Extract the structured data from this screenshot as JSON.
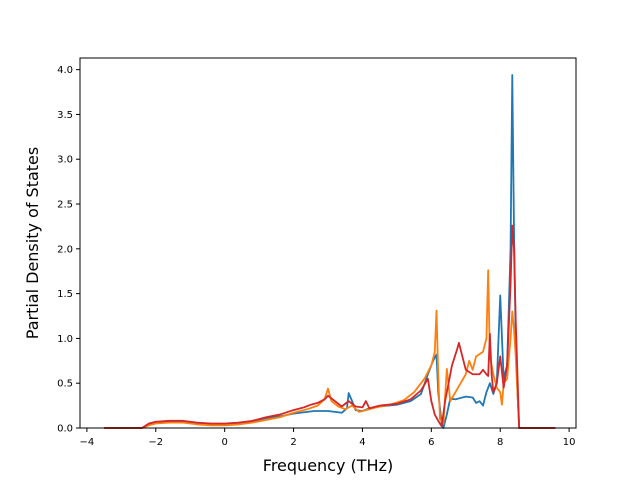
{
  "chart_data": {
    "type": "line",
    "title": "",
    "xlabel": "Frequency (THz)",
    "ylabel": "Partial Density of States",
    "xlim": [
      -4.2,
      10.2
    ],
    "ylim": [
      0,
      4.13
    ],
    "xticks": [
      -4,
      -2,
      0,
      2,
      4,
      6,
      8,
      10
    ],
    "yticks": [
      0.0,
      0.5,
      1.0,
      1.5,
      2.0,
      2.5,
      3.0,
      3.5,
      4.0
    ],
    "xtick_labels": [
      "−4",
      "−2",
      "0",
      "2",
      "4",
      "6",
      "8",
      "10"
    ],
    "ytick_labels": [
      "0.0",
      "0.5",
      "1.0",
      "1.5",
      "2.0",
      "2.5",
      "3.0",
      "3.5",
      "4.0"
    ],
    "grid": false,
    "legend": "none",
    "series": [
      {
        "color": "#1f77b4",
        "points": [
          [
            -3.5,
            0
          ],
          [
            -2.4,
            0
          ],
          [
            -2.2,
            0.04
          ],
          [
            -2.0,
            0.06
          ],
          [
            -1.6,
            0.07
          ],
          [
            -1.2,
            0.07
          ],
          [
            -0.8,
            0.05
          ],
          [
            -0.4,
            0.04
          ],
          [
            0,
            0.04
          ],
          [
            0.4,
            0.05
          ],
          [
            0.8,
            0.07
          ],
          [
            1.2,
            0.11
          ],
          [
            1.6,
            0.13
          ],
          [
            2.0,
            0.16
          ],
          [
            2.4,
            0.18
          ],
          [
            2.6,
            0.19
          ],
          [
            2.8,
            0.19
          ],
          [
            3.0,
            0.19
          ],
          [
            3.2,
            0.18
          ],
          [
            3.4,
            0.17
          ],
          [
            3.55,
            0.22
          ],
          [
            3.6,
            0.39
          ],
          [
            3.7,
            0.3
          ],
          [
            3.8,
            0.2
          ],
          [
            4.0,
            0.19
          ],
          [
            4.2,
            0.22
          ],
          [
            4.5,
            0.24
          ],
          [
            5.0,
            0.26
          ],
          [
            5.4,
            0.3
          ],
          [
            5.7,
            0.38
          ],
          [
            5.9,
            0.6
          ],
          [
            6.05,
            0.75
          ],
          [
            6.15,
            0.82
          ],
          [
            6.2,
            0.4
          ],
          [
            6.3,
            0.05
          ],
          [
            6.35,
            0
          ],
          [
            6.45,
            0.15
          ],
          [
            6.55,
            0.33
          ],
          [
            6.7,
            0.32
          ],
          [
            6.8,
            0.33
          ],
          [
            7.0,
            0.35
          ],
          [
            7.2,
            0.34
          ],
          [
            7.3,
            0.28
          ],
          [
            7.4,
            0.3
          ],
          [
            7.5,
            0.25
          ],
          [
            7.6,
            0.4
          ],
          [
            7.7,
            0.5
          ],
          [
            7.8,
            0.38
          ],
          [
            7.9,
            0.5
          ],
          [
            8.0,
            1.48
          ],
          [
            8.1,
            0.55
          ],
          [
            8.2,
            0.7
          ],
          [
            8.3,
            2.0
          ],
          [
            8.35,
            3.94
          ],
          [
            8.4,
            2.2
          ],
          [
            8.45,
            1.0
          ],
          [
            8.5,
            0.4
          ],
          [
            8.55,
            0
          ],
          [
            9.6,
            0
          ]
        ]
      },
      {
        "color": "#ff7f0e",
        "points": [
          [
            -3.5,
            0
          ],
          [
            -2.4,
            0
          ],
          [
            -2.2,
            0.03
          ],
          [
            -2.0,
            0.05
          ],
          [
            -1.6,
            0.06
          ],
          [
            -1.2,
            0.06
          ],
          [
            -0.8,
            0.04
          ],
          [
            -0.4,
            0.03
          ],
          [
            0,
            0.03
          ],
          [
            0.4,
            0.04
          ],
          [
            0.8,
            0.06
          ],
          [
            1.2,
            0.09
          ],
          [
            1.6,
            0.12
          ],
          [
            2.0,
            0.17
          ],
          [
            2.4,
            0.21
          ],
          [
            2.7,
            0.25
          ],
          [
            2.9,
            0.32
          ],
          [
            3.0,
            0.44
          ],
          [
            3.1,
            0.3
          ],
          [
            3.3,
            0.24
          ],
          [
            3.5,
            0.21
          ],
          [
            3.7,
            0.25
          ],
          [
            3.9,
            0.18
          ],
          [
            4.1,
            0.2
          ],
          [
            4.4,
            0.23
          ],
          [
            4.8,
            0.26
          ],
          [
            5.2,
            0.31
          ],
          [
            5.5,
            0.4
          ],
          [
            5.8,
            0.55
          ],
          [
            6.0,
            0.7
          ],
          [
            6.1,
            0.85
          ],
          [
            6.15,
            1.31
          ],
          [
            6.2,
            0.6
          ],
          [
            6.25,
            0.1
          ],
          [
            6.35,
            0.05
          ],
          [
            6.45,
            0.66
          ],
          [
            6.55,
            0.3
          ],
          [
            6.7,
            0.4
          ],
          [
            6.85,
            0.5
          ],
          [
            7.0,
            0.6
          ],
          [
            7.1,
            0.75
          ],
          [
            7.2,
            0.65
          ],
          [
            7.3,
            0.8
          ],
          [
            7.5,
            0.85
          ],
          [
            7.6,
            1.0
          ],
          [
            7.65,
            1.76
          ],
          [
            7.7,
            0.8
          ],
          [
            7.8,
            0.6
          ],
          [
            7.9,
            0.45
          ],
          [
            8.0,
            0.4
          ],
          [
            8.05,
            0.26
          ],
          [
            8.1,
            0.5
          ],
          [
            8.2,
            0.55
          ],
          [
            8.3,
            1.0
          ],
          [
            8.35,
            1.3
          ],
          [
            8.4,
            1.1
          ],
          [
            8.45,
            0.8
          ],
          [
            8.5,
            0.4
          ],
          [
            8.55,
            0
          ],
          [
            9.6,
            0
          ]
        ]
      },
      {
        "color": "#d62728",
        "points": [
          [
            -3.5,
            0
          ],
          [
            -2.4,
            0
          ],
          [
            -2.2,
            0.05
          ],
          [
            -2.0,
            0.07
          ],
          [
            -1.6,
            0.08
          ],
          [
            -1.2,
            0.08
          ],
          [
            -0.8,
            0.06
          ],
          [
            -0.4,
            0.05
          ],
          [
            0,
            0.05
          ],
          [
            0.4,
            0.06
          ],
          [
            0.8,
            0.08
          ],
          [
            1.2,
            0.12
          ],
          [
            1.6,
            0.15
          ],
          [
            2.0,
            0.2
          ],
          [
            2.3,
            0.23
          ],
          [
            2.5,
            0.26
          ],
          [
            2.7,
            0.28
          ],
          [
            2.9,
            0.32
          ],
          [
            3.0,
            0.36
          ],
          [
            3.2,
            0.3
          ],
          [
            3.4,
            0.24
          ],
          [
            3.6,
            0.3
          ],
          [
            3.8,
            0.24
          ],
          [
            4.0,
            0.23
          ],
          [
            4.1,
            0.3
          ],
          [
            4.2,
            0.22
          ],
          [
            4.5,
            0.25
          ],
          [
            5.0,
            0.27
          ],
          [
            5.4,
            0.32
          ],
          [
            5.7,
            0.42
          ],
          [
            5.9,
            0.55
          ],
          [
            6.0,
            0.3
          ],
          [
            6.1,
            0.15
          ],
          [
            6.2,
            0.08
          ],
          [
            6.3,
            0.02
          ],
          [
            6.4,
            0.3
          ],
          [
            6.5,
            0.5
          ],
          [
            6.6,
            0.7
          ],
          [
            6.75,
            0.88
          ],
          [
            6.8,
            0.95
          ],
          [
            6.9,
            0.8
          ],
          [
            7.0,
            0.65
          ],
          [
            7.2,
            0.6
          ],
          [
            7.4,
            0.6
          ],
          [
            7.5,
            0.65
          ],
          [
            7.6,
            0.6
          ],
          [
            7.65,
            0.58
          ],
          [
            7.7,
            1.05
          ],
          [
            7.75,
            0.6
          ],
          [
            7.8,
            0.4
          ],
          [
            7.9,
            0.5
          ],
          [
            8.0,
            0.8
          ],
          [
            8.1,
            0.45
          ],
          [
            8.2,
            0.7
          ],
          [
            8.3,
            1.6
          ],
          [
            8.35,
            2.26
          ],
          [
            8.4,
            2.0
          ],
          [
            8.45,
            1.2
          ],
          [
            8.5,
            0.6
          ],
          [
            8.55,
            0
          ],
          [
            9.6,
            0
          ]
        ]
      }
    ]
  }
}
